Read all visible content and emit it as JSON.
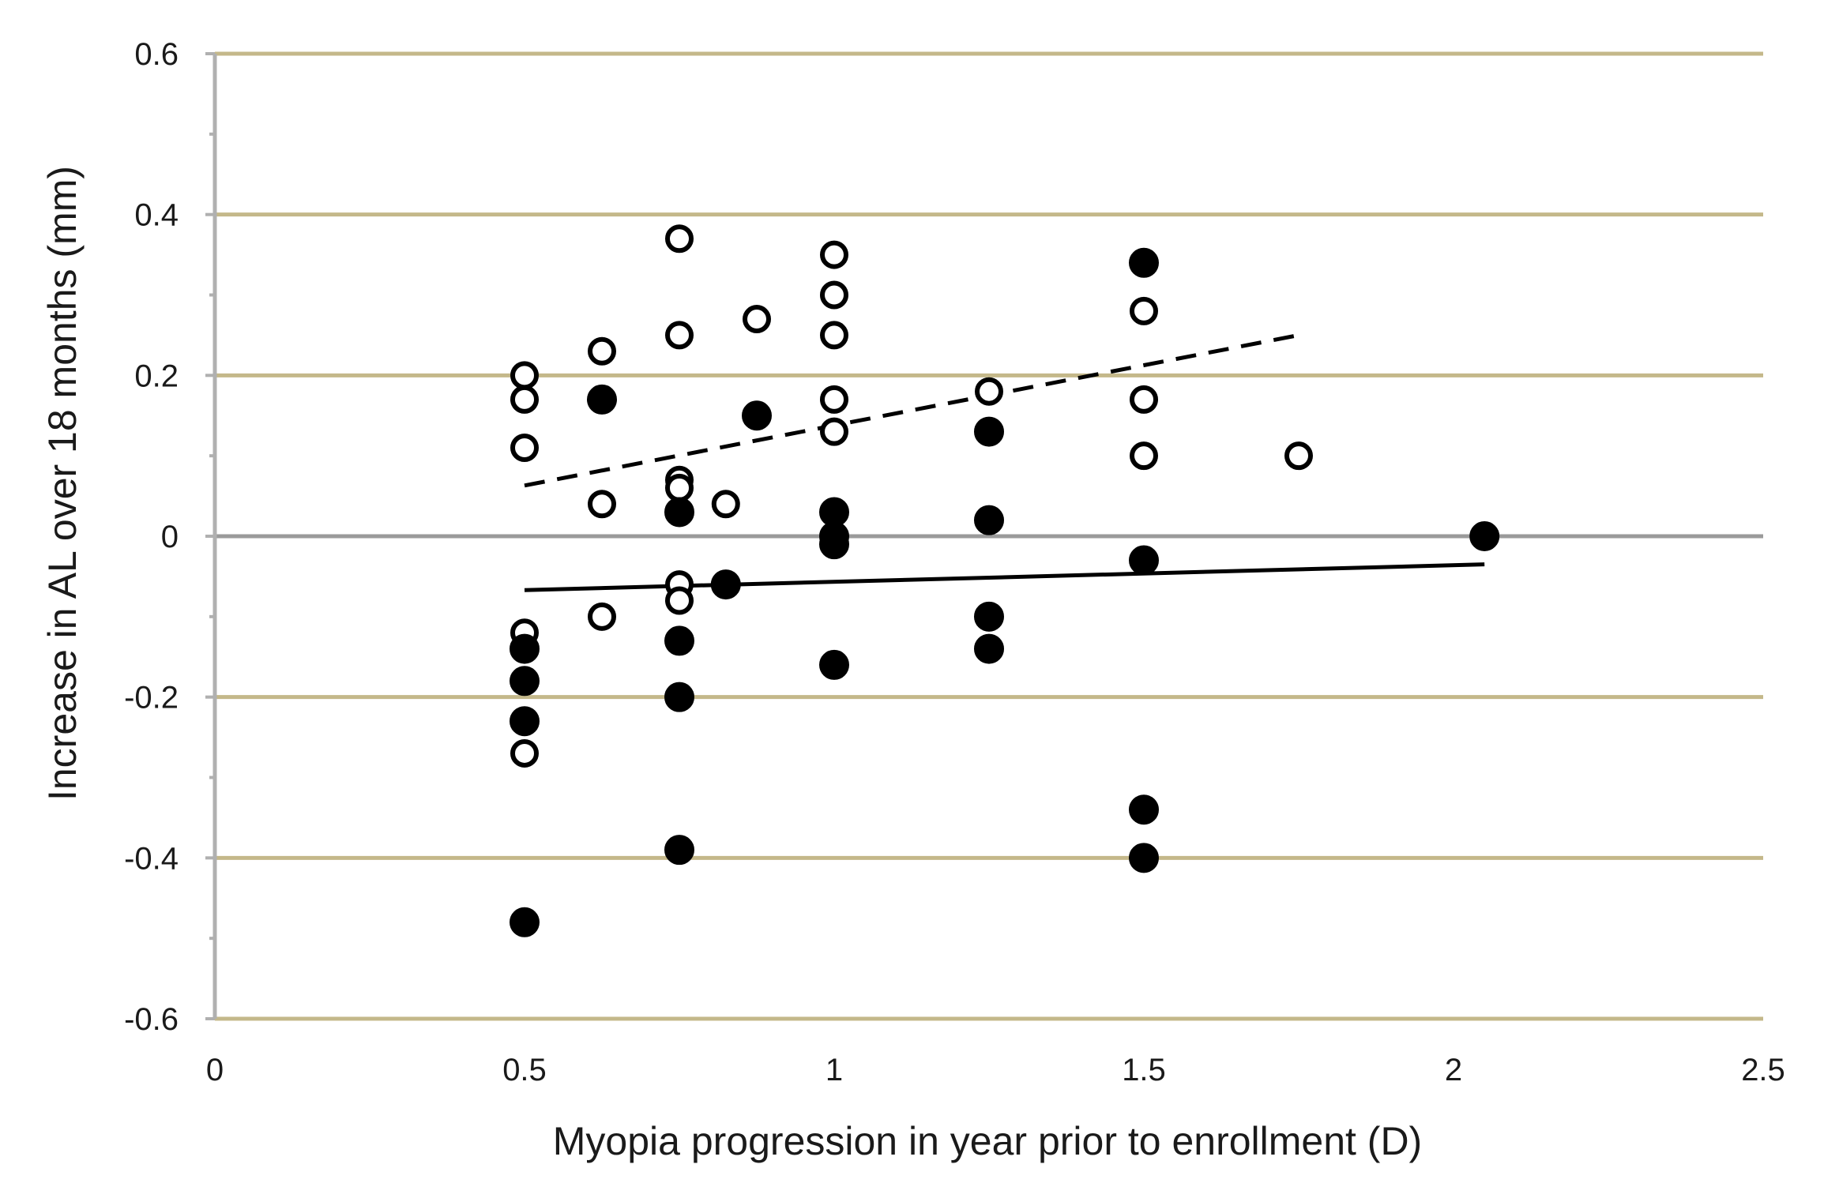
{
  "chart_data": {
    "type": "scatter",
    "title": "",
    "xlabel": "Myopia progression in year prior to enrollment (D)",
    "ylabel": "Increase in AL over 18 months (mm)",
    "xlim": [
      0,
      2.5
    ],
    "ylim": [
      -0.6,
      0.6
    ],
    "x_ticks": [
      0,
      0.5,
      1,
      1.5,
      2,
      2.5
    ],
    "x_tick_labels": [
      "0",
      "0.5",
      "1",
      "1.5",
      "2",
      "2.5"
    ],
    "y_ticks": [
      -0.6,
      -0.4,
      -0.2,
      0,
      0.2,
      0.4,
      0.6
    ],
    "y_tick_labels": [
      "-0.6",
      "-0.4",
      "-0.2",
      "0",
      "0.2",
      "0.4",
      "0.6"
    ],
    "colors": {
      "gridline": "#c4b88a",
      "zero_line": "#9a9a9a",
      "axis": "#b0b0b0",
      "marker": "#000000"
    },
    "series": [
      {
        "name": "open circles",
        "marker": "open-circle",
        "points": [
          [
            0.5,
            0.2
          ],
          [
            0.5,
            0.17
          ],
          [
            0.5,
            0.11
          ],
          [
            0.5,
            -0.12
          ],
          [
            0.5,
            -0.27
          ],
          [
            0.625,
            0.23
          ],
          [
            0.625,
            0.04
          ],
          [
            0.625,
            -0.1
          ],
          [
            0.75,
            0.37
          ],
          [
            0.75,
            0.25
          ],
          [
            0.75,
            0.07
          ],
          [
            0.75,
            0.06
          ],
          [
            0.75,
            -0.06
          ],
          [
            0.75,
            -0.08
          ],
          [
            0.825,
            0.04
          ],
          [
            0.875,
            0.27
          ],
          [
            1.0,
            0.35
          ],
          [
            1.0,
            0.3
          ],
          [
            1.0,
            0.25
          ],
          [
            1.0,
            0.17
          ],
          [
            1.0,
            0.13
          ],
          [
            1.25,
            0.18
          ],
          [
            1.5,
            0.28
          ],
          [
            1.5,
            0.17
          ],
          [
            1.5,
            0.1
          ],
          [
            1.75,
            0.1
          ]
        ],
        "trendline": {
          "style": "dashed",
          "x": [
            0.5,
            1.75
          ],
          "y": [
            0.063,
            0.25
          ]
        }
      },
      {
        "name": "filled circles",
        "marker": "filled-circle",
        "points": [
          [
            0.5,
            -0.14
          ],
          [
            0.5,
            -0.18
          ],
          [
            0.5,
            -0.23
          ],
          [
            0.5,
            -0.48
          ],
          [
            0.625,
            0.17
          ],
          [
            0.75,
            0.03
          ],
          [
            0.75,
            -0.13
          ],
          [
            0.75,
            -0.2
          ],
          [
            0.75,
            -0.39
          ],
          [
            0.825,
            -0.06
          ],
          [
            0.875,
            0.15
          ],
          [
            1.0,
            0.03
          ],
          [
            1.0,
            0.0
          ],
          [
            1.0,
            -0.01
          ],
          [
            1.0,
            -0.16
          ],
          [
            1.25,
            0.13
          ],
          [
            1.25,
            0.02
          ],
          [
            1.25,
            -0.1
          ],
          [
            1.25,
            -0.14
          ],
          [
            1.5,
            0.34
          ],
          [
            1.5,
            -0.03
          ],
          [
            1.5,
            -0.34
          ],
          [
            1.5,
            -0.4
          ],
          [
            2.05,
            0.0
          ]
        ],
        "trendline": {
          "style": "solid",
          "x": [
            0.5,
            2.05
          ],
          "y": [
            -0.067,
            -0.035
          ]
        }
      }
    ]
  }
}
